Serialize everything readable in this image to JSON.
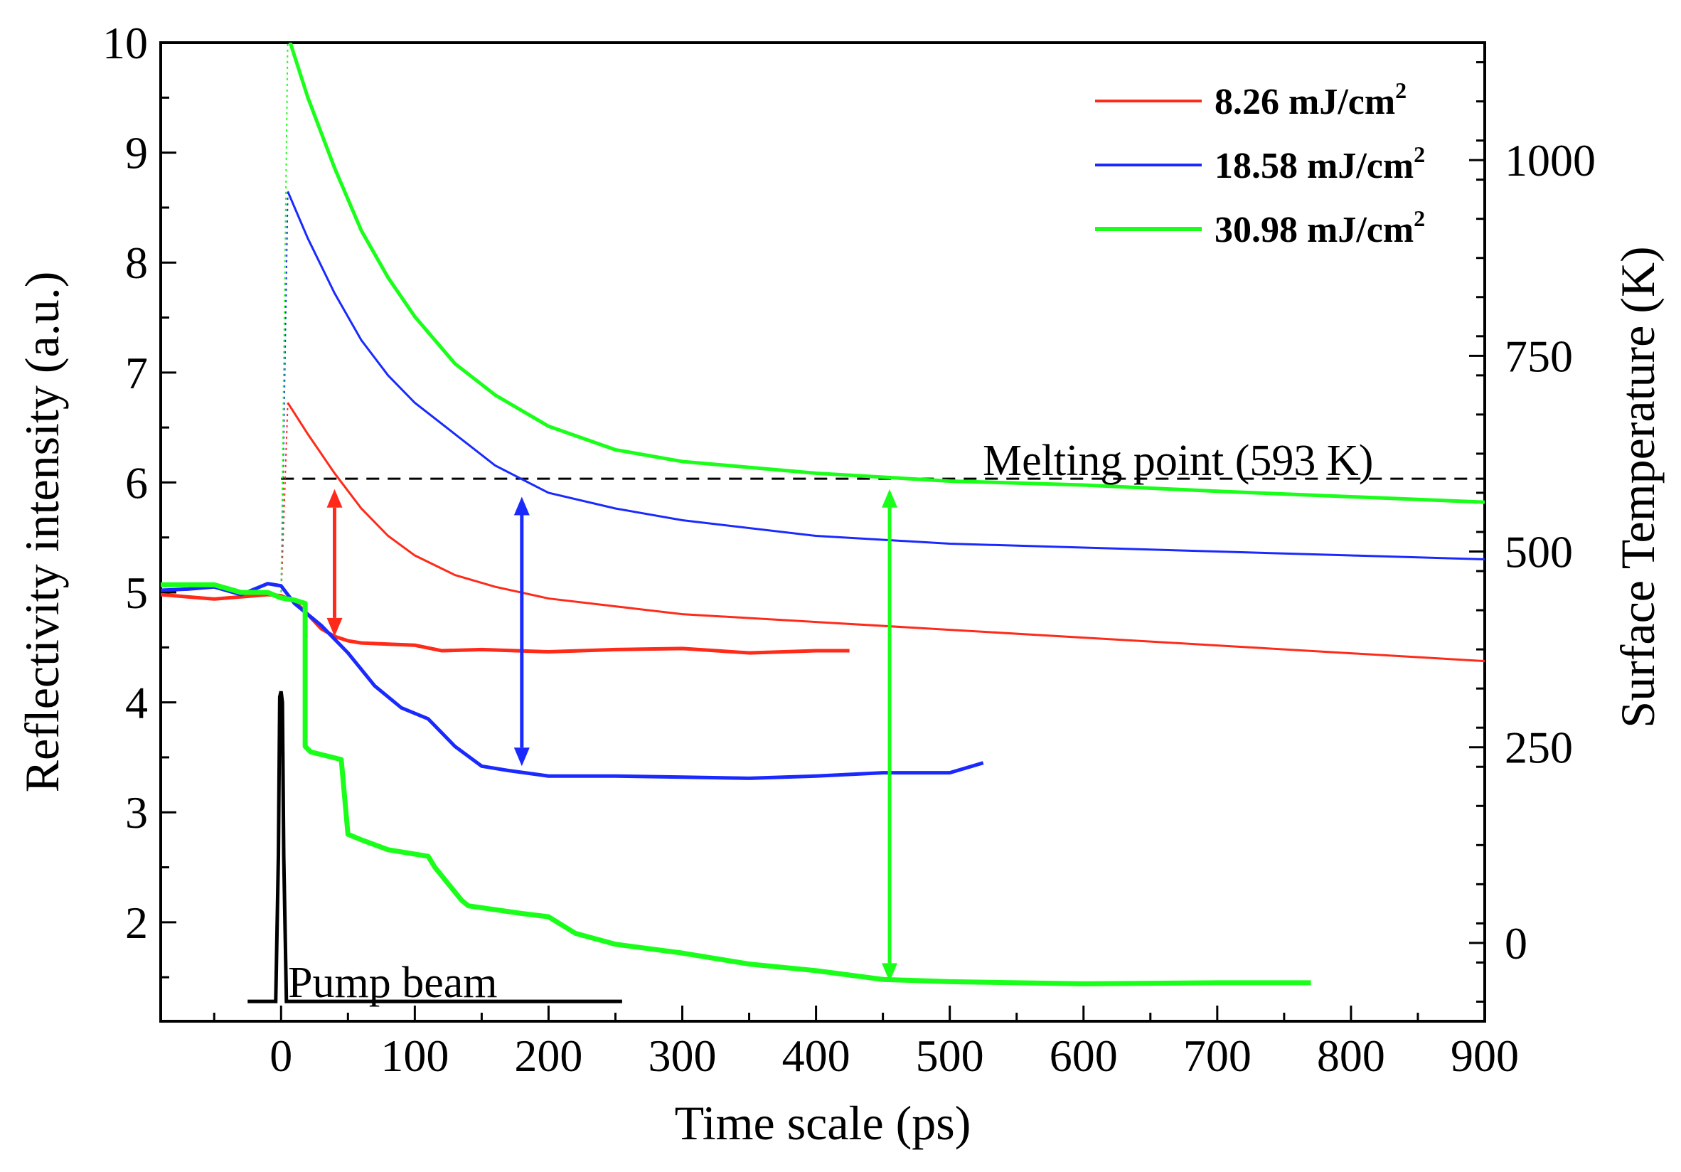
{
  "chart_data": {
    "type": "line",
    "title": "",
    "xlabel": "Time scale (ps)",
    "ylabel_left": "Reflectivity intensity (a.u.)",
    "ylabel_right": "Surface Temperature (K)",
    "xlim": [
      -90,
      900
    ],
    "ylim_left": [
      1.1,
      10.0
    ],
    "ylim_right": [
      -100,
      1150
    ],
    "x_ticks": [
      0,
      100,
      200,
      300,
      400,
      500,
      600,
      700,
      800,
      900
    ],
    "y_left_ticks": [
      2,
      3,
      4,
      5,
      6,
      7,
      8,
      9,
      10
    ],
    "y_right_ticks": [
      0,
      250,
      500,
      750,
      1000
    ],
    "grid": false,
    "legend_position": "top-right",
    "colors": {
      "red": "#ff2a1a",
      "blue": "#1a2aff",
      "green": "#1aff1a",
      "black": "#000000"
    },
    "legend": [
      {
        "label": "8.26 mJ/cm",
        "sup": "2",
        "color": "#ff2a1a"
      },
      {
        "label": "18.58 mJ/cm",
        "sup": "2",
        "color": "#1a2aff"
      },
      {
        "label": "30.98 mJ/cm",
        "sup": "2",
        "color": "#1aff1a"
      }
    ],
    "annotations": {
      "melting_point": {
        "text": "Melting point (593 K)",
        "y_temperature": 593
      },
      "pump_beam": {
        "text": "Pump beam"
      }
    },
    "reflectivity_series": [
      {
        "color": "#ff2a1a",
        "x": [
          -90,
          -70,
          -50,
          -30,
          -10,
          0,
          10,
          20,
          30,
          40,
          50,
          60,
          80,
          100,
          120,
          150,
          200,
          250,
          300,
          350,
          400,
          425
        ],
        "y": [
          4.98,
          4.96,
          4.94,
          4.96,
          4.98,
          4.97,
          4.92,
          4.8,
          4.67,
          4.6,
          4.56,
          4.54,
          4.53,
          4.52,
          4.47,
          4.48,
          4.46,
          4.48,
          4.49,
          4.45,
          4.47,
          4.47
        ]
      },
      {
        "color": "#1a2aff",
        "x": [
          -90,
          -70,
          -50,
          -30,
          -10,
          0,
          10,
          20,
          30,
          50,
          70,
          90,
          110,
          130,
          150,
          170,
          200,
          250,
          300,
          350,
          400,
          450,
          500,
          525
        ],
        "y": [
          5.02,
          5.03,
          5.05,
          4.98,
          5.08,
          5.06,
          4.9,
          4.8,
          4.7,
          4.45,
          4.15,
          3.95,
          3.85,
          3.6,
          3.42,
          3.38,
          3.33,
          3.33,
          3.32,
          3.31,
          3.33,
          3.36,
          3.36,
          3.45
        ]
      },
      {
        "color": "#1aff1a",
        "x": [
          -90,
          -50,
          -30,
          -10,
          0,
          10,
          18,
          18,
          22,
          45,
          50,
          60,
          80,
          110,
          115,
          135,
          140,
          180,
          200,
          220,
          250,
          300,
          350,
          400,
          450,
          500,
          550,
          600,
          700,
          750,
          770
        ],
        "y": [
          5.07,
          5.07,
          5.0,
          5.0,
          4.95,
          4.93,
          4.9,
          3.6,
          3.55,
          3.48,
          2.8,
          2.75,
          2.66,
          2.6,
          2.5,
          2.2,
          2.15,
          2.08,
          2.05,
          1.9,
          1.8,
          1.72,
          1.62,
          1.56,
          1.48,
          1.46,
          1.45,
          1.44,
          1.45,
          1.45,
          1.45
        ]
      }
    ],
    "temperature_series": [
      {
        "color": "#ff2a1a",
        "x": [
          5,
          20,
          40,
          60,
          80,
          100,
          130,
          160,
          200,
          250,
          300,
          400,
          500,
          600,
          700,
          800,
          900
        ],
        "y": [
          690,
          650,
          600,
          555,
          520,
          495,
          470,
          455,
          440,
          430,
          420,
          410,
          400,
          390,
          380,
          370,
          360
        ]
      },
      {
        "color": "#1a2aff",
        "x": [
          5,
          20,
          40,
          60,
          80,
          100,
          130,
          160,
          200,
          250,
          300,
          400,
          500,
          600,
          700,
          800,
          900
        ],
        "y": [
          960,
          900,
          830,
          770,
          725,
          690,
          650,
          610,
          575,
          555,
          540,
          520,
          510,
          505,
          500,
          495,
          490
        ]
      },
      {
        "color": "#1aff1a",
        "x": [
          5,
          20,
          40,
          60,
          80,
          100,
          130,
          160,
          200,
          250,
          300,
          400,
          500,
          600,
          700,
          800,
          900
        ],
        "y": [
          1160,
          1080,
          990,
          910,
          850,
          800,
          740,
          700,
          660,
          630,
          615,
          600,
          590,
          585,
          577,
          570,
          563
        ]
      }
    ],
    "pump_beam_pulse": {
      "x": [
        -25,
        -4,
        -2,
        -1,
        0,
        1,
        2,
        4,
        255
      ],
      "y": [
        1.28,
        1.28,
        2.6,
        4.05,
        4.1,
        4.0,
        2.6,
        1.28,
        1.28
      ]
    },
    "double_arrows": [
      {
        "color": "#ff2a1a",
        "x": 40,
        "y_top": 5.94,
        "y_bottom": 4.6
      },
      {
        "color": "#1a2aff",
        "x": 180,
        "y_top": 5.87,
        "y_bottom": 3.42
      },
      {
        "color": "#1aff1a",
        "x": 455,
        "y_top": 5.94,
        "y_bottom": 1.46
      }
    ]
  }
}
